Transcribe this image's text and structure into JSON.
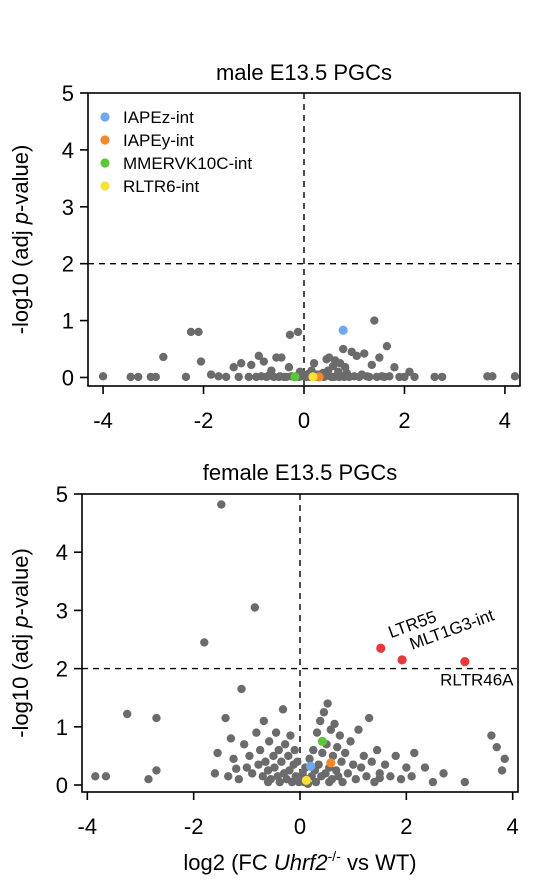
{
  "chart_data": [
    {
      "type": "scatter",
      "title": "male E13.5 PGCs",
      "ylabel_prefix": "-log10 (adj ",
      "ylabel_italic": "p",
      "ylabel_suffix": "-value)",
      "xlim": [
        -4.3,
        4.3
      ],
      "ylim": [
        -0.15,
        5
      ],
      "xticks": [
        -4,
        -2,
        0,
        2,
        4
      ],
      "xtick_labels": [
        "-4",
        "-2",
        "0",
        "2",
        "4"
      ],
      "yticks": [
        0,
        1,
        2,
        3,
        4,
        5
      ],
      "ytick_labels": [
        "0",
        "1",
        "2",
        "3",
        "4",
        "5"
      ],
      "threshold_y": 2,
      "threshold_x": 0,
      "legend": {
        "position": "top-left",
        "entries": [
          {
            "label": "IAPEz-int",
            "color": "#6fa8f0"
          },
          {
            "label": "IAPEy-int",
            "color": "#f0892e"
          },
          {
            "label": "MMERVK10C-int",
            "color": "#5cc63a"
          },
          {
            "label": "RLTR6-int",
            "color": "#f5e13a"
          }
        ]
      },
      "background_color": "#6b6b6b",
      "background_points": [
        [
          -4.0,
          0.02
        ],
        [
          -3.45,
          0.01
        ],
        [
          -3.3,
          0.01
        ],
        [
          -3.05,
          0.01
        ],
        [
          -2.95,
          0.01
        ],
        [
          -2.8,
          0.36
        ],
        [
          -2.35,
          0.01
        ],
        [
          -2.25,
          0.8
        ],
        [
          -2.1,
          0.8
        ],
        [
          -2.05,
          0.28
        ],
        [
          -1.85,
          0.05
        ],
        [
          -1.7,
          0.02
        ],
        [
          -1.55,
          0.01
        ],
        [
          -1.4,
          0.18
        ],
        [
          -1.3,
          0.01
        ],
        [
          -1.25,
          0.25
        ],
        [
          -1.1,
          0.01
        ],
        [
          -1.05,
          0.22
        ],
        [
          -0.95,
          0.01
        ],
        [
          -0.9,
          0.38
        ],
        [
          -0.85,
          0.02
        ],
        [
          -0.8,
          0.28
        ],
        [
          -0.75,
          0.01
        ],
        [
          -0.7,
          0.03
        ],
        [
          -0.65,
          0.12
        ],
        [
          -0.6,
          0.01
        ],
        [
          -0.55,
          0.35
        ],
        [
          -0.5,
          0.01
        ],
        [
          -0.48,
          0.02
        ],
        [
          -0.45,
          0.35
        ],
        [
          -0.4,
          0.01
        ],
        [
          -0.35,
          0.01
        ],
        [
          -0.3,
          0.18
        ],
        [
          -0.28,
          0.75
        ],
        [
          -0.25,
          0.02
        ],
        [
          -0.2,
          0.01
        ],
        [
          -0.15,
          0.02
        ],
        [
          -0.12,
          0.8
        ],
        [
          -0.1,
          0.01
        ],
        [
          -0.08,
          0.1
        ],
        [
          -0.05,
          0.02
        ],
        [
          -0.02,
          0.05
        ],
        [
          0.02,
          0.02
        ],
        [
          0.05,
          0.01
        ],
        [
          0.08,
          0.06
        ],
        [
          0.1,
          0.03
        ],
        [
          0.12,
          0.01
        ],
        [
          0.15,
          0.12
        ],
        [
          0.18,
          0.02
        ],
        [
          0.2,
          0.25
        ],
        [
          0.22,
          0.01
        ],
        [
          0.25,
          0.05
        ],
        [
          0.28,
          0.02
        ],
        [
          0.3,
          0.01
        ],
        [
          0.32,
          0.05
        ],
        [
          0.35,
          0.02
        ],
        [
          0.38,
          0.08
        ],
        [
          0.4,
          0.01
        ],
        [
          0.42,
          0.02
        ],
        [
          0.45,
          0.32
        ],
        [
          0.48,
          0.12
        ],
        [
          0.5,
          0.35
        ],
        [
          0.52,
          0.02
        ],
        [
          0.55,
          0.01
        ],
        [
          0.58,
          0.2
        ],
        [
          0.6,
          0.01
        ],
        [
          0.62,
          0.3
        ],
        [
          0.65,
          0.02
        ],
        [
          0.68,
          0.1
        ],
        [
          0.7,
          0.01
        ],
        [
          0.72,
          0.25
        ],
        [
          0.75,
          0.02
        ],
        [
          0.78,
          0.5
        ],
        [
          0.8,
          0.01
        ],
        [
          0.82,
          0.18
        ],
        [
          0.85,
          0.08
        ],
        [
          0.88,
          0.02
        ],
        [
          0.9,
          0.01
        ],
        [
          0.95,
          0.45
        ],
        [
          1.0,
          0.02
        ],
        [
          1.05,
          0.38
        ],
        [
          1.1,
          0.01
        ],
        [
          1.15,
          0.05
        ],
        [
          1.2,
          0.42
        ],
        [
          1.25,
          0.02
        ],
        [
          1.3,
          0.01
        ],
        [
          1.35,
          0.22
        ],
        [
          1.4,
          1.0
        ],
        [
          1.45,
          0.01
        ],
        [
          1.5,
          0.35
        ],
        [
          1.55,
          0.02
        ],
        [
          1.6,
          0.01
        ],
        [
          1.65,
          0.55
        ],
        [
          1.7,
          0.02
        ],
        [
          1.8,
          0.18
        ],
        [
          1.9,
          0.01
        ],
        [
          2.0,
          0.01
        ],
        [
          2.1,
          0.1
        ],
        [
          2.2,
          0.01
        ],
        [
          2.6,
          0.01
        ],
        [
          2.75,
          0.01
        ],
        [
          3.65,
          0.02
        ],
        [
          3.75,
          0.02
        ],
        [
          4.2,
          0.02
        ]
      ],
      "highlight_points": [
        {
          "name": "IAPEz-int",
          "x": 0.78,
          "y": 0.83,
          "color": "#6fa8f0"
        },
        {
          "name": "IAPEy-int",
          "x": 0.3,
          "y": 0.01,
          "color": "#f0892e"
        },
        {
          "name": "MMERVK10C-int",
          "x": -0.18,
          "y": 0.01,
          "color": "#5cc63a"
        },
        {
          "name": "RLTR6-int",
          "x": 0.18,
          "y": 0.01,
          "color": "#f5e13a"
        }
      ]
    },
    {
      "type": "scatter",
      "title": "female E13.5 PGCs",
      "xlabel_prefix": "log2 (FC ",
      "xlabel_italic": "Uhrf2",
      "xlabel_sup": "-/-",
      "xlabel_suffix": " vs WT)",
      "ylabel_prefix": "-log10 (adj ",
      "ylabel_italic": "p",
      "ylabel_suffix": "-value)",
      "xlim": [
        -4.1,
        4.1
      ],
      "ylim": [
        -0.12,
        5
      ],
      "xticks": [
        -4,
        -2,
        0,
        2,
        4
      ],
      "xtick_labels": [
        "-4",
        "-2",
        "0",
        "2",
        "4"
      ],
      "yticks": [
        0,
        1,
        2,
        3,
        4,
        5
      ],
      "ytick_labels": [
        "0",
        "1",
        "2",
        "3",
        "4",
        "5"
      ],
      "threshold_y": 2,
      "threshold_x": 0,
      "background_color": "#6b6b6b",
      "background_points": [
        [
          -3.85,
          0.15
        ],
        [
          -3.65,
          0.15
        ],
        [
          -3.25,
          1.22
        ],
        [
          -2.85,
          0.1
        ],
        [
          -2.7,
          1.15
        ],
        [
          -2.7,
          0.25
        ],
        [
          -1.8,
          2.45
        ],
        [
          -1.55,
          0.55
        ],
        [
          -1.48,
          4.82
        ],
        [
          -1.6,
          0.2
        ],
        [
          -1.35,
          0.15
        ],
        [
          -1.2,
          0.28
        ],
        [
          -1.4,
          1.15
        ],
        [
          -1.3,
          0.8
        ],
        [
          -1.25,
          0.45
        ],
        [
          -1.15,
          0.1
        ],
        [
          -1.1,
          1.65
        ],
        [
          -1.05,
          0.7
        ],
        [
          -1.0,
          0.3
        ],
        [
          -0.95,
          0.5
        ],
        [
          -0.85,
          3.05
        ],
        [
          -0.9,
          0.2
        ],
        [
          -0.82,
          0.9
        ],
        [
          -0.78,
          0.35
        ],
        [
          -0.75,
          0.6
        ],
        [
          -0.7,
          0.15
        ],
        [
          -0.68,
          1.1
        ],
        [
          -0.65,
          0.4
        ],
        [
          -0.6,
          0.25
        ],
        [
          -0.58,
          0.75
        ],
        [
          -0.55,
          0.1
        ],
        [
          -0.5,
          0.5
        ],
        [
          -0.48,
          0.3
        ],
        [
          -0.45,
          0.9
        ],
        [
          -0.42,
          0.15
        ],
        [
          -0.4,
          0.6
        ],
        [
          -0.38,
          0.05
        ],
        [
          -0.35,
          0.4
        ],
        [
          -0.32,
          1.3
        ],
        [
          -0.3,
          0.2
        ],
        [
          -0.28,
          0.7
        ],
        [
          -0.25,
          0.1
        ],
        [
          -0.22,
          0.5
        ],
        [
          -0.2,
          0.25
        ],
        [
          -0.18,
          0.85
        ],
        [
          -0.15,
          0.05
        ],
        [
          -0.12,
          0.35
        ],
        [
          -0.1,
          0.6
        ],
        [
          -0.08,
          0.15
        ],
        [
          -0.05,
          0.4
        ],
        [
          -0.02,
          0.05
        ],
        [
          0.02,
          0.1
        ],
        [
          0.05,
          0.2
        ],
        [
          0.08,
          0.05
        ],
        [
          0.1,
          0.3
        ],
        [
          0.12,
          0.1
        ],
        [
          0.15,
          0.02
        ],
        [
          0.18,
          0.45
        ],
        [
          0.22,
          0.15
        ],
        [
          0.25,
          0.6
        ],
        [
          0.28,
          0.25
        ],
        [
          0.3,
          0.05
        ],
        [
          0.32,
          0.9
        ],
        [
          0.35,
          0.35
        ],
        [
          0.38,
          1.1
        ],
        [
          0.4,
          0.15
        ],
        [
          0.42,
          0.55
        ],
        [
          0.45,
          1.25
        ],
        [
          0.48,
          0.2
        ],
        [
          0.5,
          0.7
        ],
        [
          0.52,
          1.4
        ],
        [
          0.55,
          0.3
        ],
        [
          0.58,
          0.95
        ],
        [
          0.6,
          0.1
        ],
        [
          0.62,
          0.5
        ],
        [
          0.65,
          1.05
        ],
        [
          0.68,
          0.25
        ],
        [
          0.7,
          0.65
        ],
        [
          0.72,
          0.15
        ],
        [
          0.75,
          0.85
        ],
        [
          0.78,
          0.4
        ],
        [
          0.8,
          0.05
        ],
        [
          0.85,
          0.55
        ],
        [
          0.9,
          0.2
        ],
        [
          0.95,
          0.75
        ],
        [
          1.0,
          0.35
        ],
        [
          1.05,
          0.1
        ],
        [
          1.1,
          0.95
        ],
        [
          1.15,
          0.3
        ],
        [
          1.2,
          0.5
        ],
        [
          1.25,
          0.15
        ],
        [
          1.3,
          1.15
        ],
        [
          1.35,
          0.4
        ],
        [
          1.4,
          0.05
        ],
        [
          1.45,
          0.6
        ],
        [
          1.5,
          0.2
        ],
        [
          1.6,
          0.35
        ],
        [
          1.7,
          0.15
        ],
        [
          1.8,
          0.5
        ],
        [
          1.9,
          0.1
        ],
        [
          2.0,
          0.3
        ],
        [
          2.1,
          0.15
        ],
        [
          2.15,
          0.55
        ],
        [
          2.35,
          0.3
        ],
        [
          2.5,
          0.05
        ],
        [
          2.7,
          0.2
        ],
        [
          3.1,
          0.05
        ],
        [
          3.6,
          0.85
        ],
        [
          3.7,
          0.65
        ],
        [
          3.85,
          0.45
        ],
        [
          3.8,
          0.25
        ],
        [
          1.5,
          0.12
        ],
        [
          -0.6,
          0.05
        ],
        [
          0.55,
          0.05
        ]
      ],
      "highlight_points": [
        {
          "name": "IAPEz-int",
          "x": 0.2,
          "y": 0.32,
          "color": "#6fa8f0"
        },
        {
          "name": "IAPEy-int",
          "x": 0.58,
          "y": 0.38,
          "color": "#f0892e"
        },
        {
          "name": "MMERVK10C-int",
          "x": 0.42,
          "y": 0.75,
          "color": "#5cc63a"
        },
        {
          "name": "RLTR6-int",
          "x": 0.12,
          "y": 0.08,
          "color": "#f5e13a"
        },
        {
          "name": "LTR55",
          "x": 1.52,
          "y": 2.35,
          "color": "#e8393a"
        },
        {
          "name": "MLT1G3-int",
          "x": 1.92,
          "y": 2.15,
          "color": "#e8393a"
        },
        {
          "name": "RLTR46A",
          "x": 3.1,
          "y": 2.12,
          "color": "#e8393a"
        }
      ],
      "annotations": [
        {
          "text": "LTR55",
          "point": "LTR55",
          "rotation": -20
        },
        {
          "text": "MLT1G3-int",
          "point": "MLT1G3-int",
          "rotation": -20
        },
        {
          "text": "RLTR46A",
          "point": "RLTR46A",
          "rotation": 0
        }
      ]
    }
  ]
}
